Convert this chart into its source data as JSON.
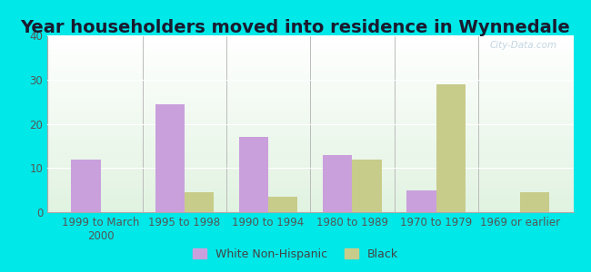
{
  "title": "Year householders moved into residence in Wynnedale",
  "categories": [
    "1999 to March\n2000",
    "1995 to 1998",
    "1990 to 1994",
    "1980 to 1989",
    "1970 to 1979",
    "1969 or earlier"
  ],
  "white_values": [
    12,
    24.5,
    17,
    13,
    5,
    0
  ],
  "black_values": [
    0,
    4.5,
    3.5,
    12,
    29,
    4.5
  ],
  "white_color": "#c9a0dc",
  "black_color": "#c8cc8a",
  "ylim": [
    0,
    40
  ],
  "yticks": [
    0,
    10,
    20,
    30,
    40
  ],
  "bar_width": 0.35,
  "background_outer": "#00e8e8",
  "watermark": "City-Data.com",
  "legend_white": "White Non-Hispanic",
  "legend_black": "Black",
  "title_fontsize": 14,
  "axis_fontsize": 8.5
}
